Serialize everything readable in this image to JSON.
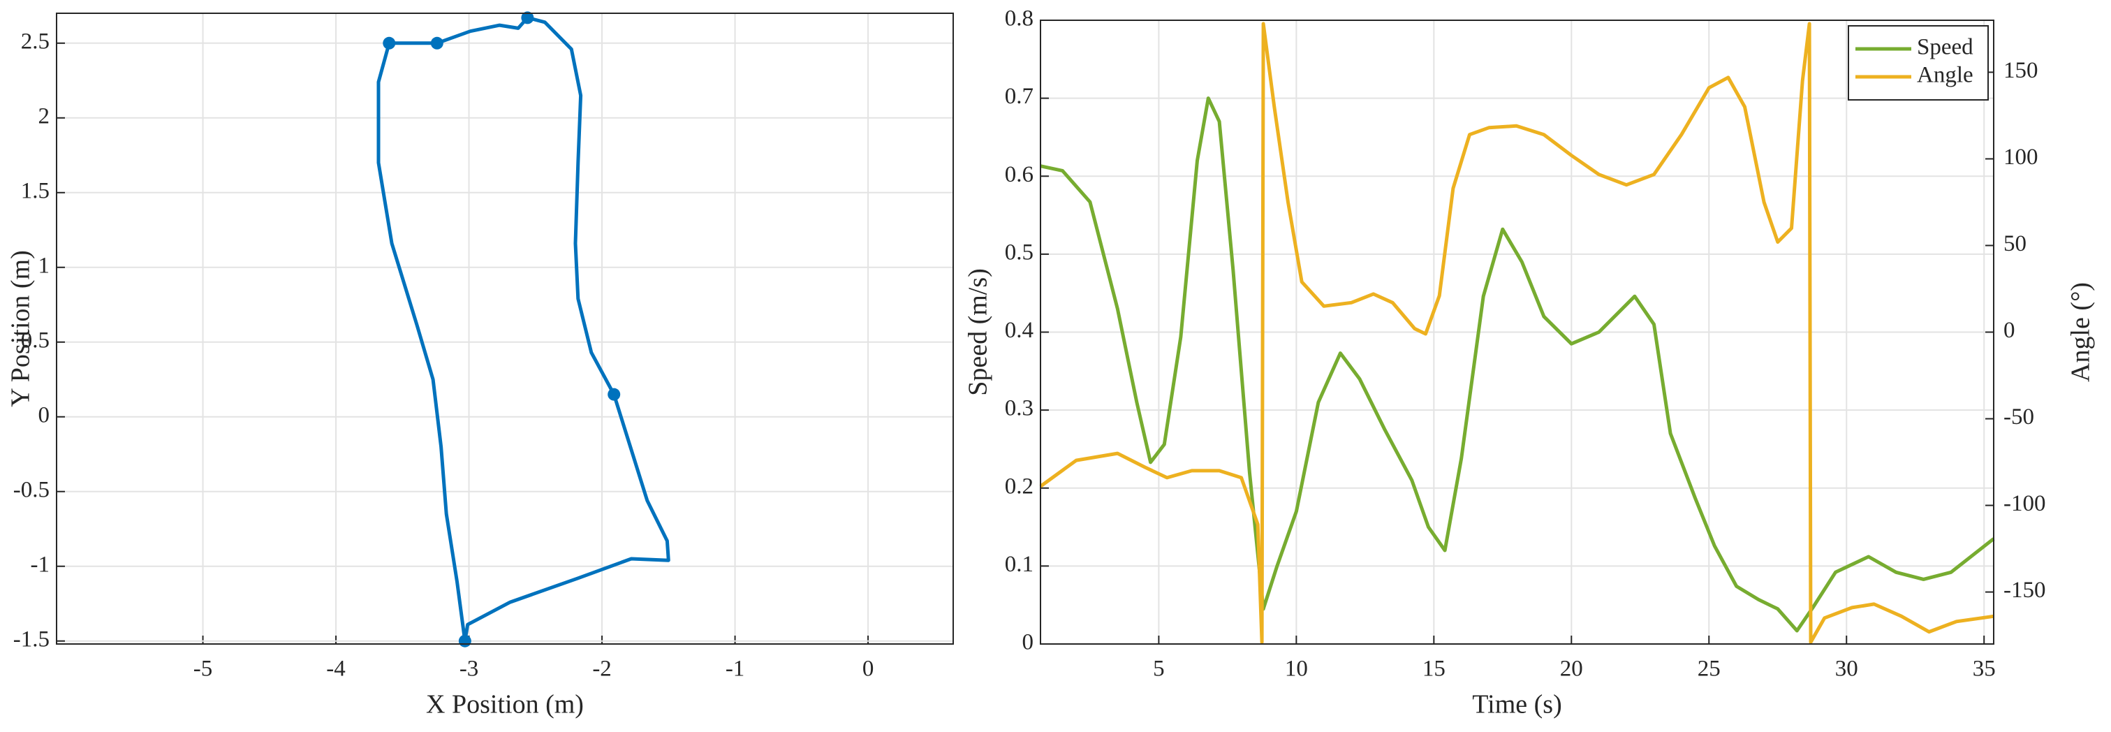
{
  "chart_data": [
    {
      "type": "line",
      "xlabel": "X Position (m)",
      "ylabel": "Y Position (m)",
      "xlim": [
        -6.1,
        0.64
      ],
      "ylim": [
        -1.52,
        2.7
      ],
      "xticks": [
        -5,
        -4,
        -3,
        -2,
        -1,
        0
      ],
      "yticks": [
        -1.5,
        -1,
        -0.5,
        0,
        0.5,
        1,
        1.5,
        2,
        2.5
      ],
      "grid": true,
      "series": [
        {
          "color": "#0072bd",
          "mode": "line",
          "x": [
            -3.03,
            -3.01,
            -2.69,
            -2.18,
            -1.78,
            -1.5,
            -1.51,
            -1.66,
            -1.91,
            -2.08,
            -2.18,
            -2.2,
            -2.18,
            -2.16,
            -2.23,
            -2.43,
            -2.56,
            -2.63,
            -2.77,
            -2.99,
            -3.24,
            -3.6,
            -3.68,
            -3.68,
            -3.58,
            -3.39,
            -3.27,
            -3.21,
            -3.17,
            -3.09,
            -3.03
          ],
          "values": [
            -1.5,
            -1.39,
            -1.24,
            -1.08,
            -0.95,
            -0.96,
            -0.83,
            -0.56,
            0.15,
            0.43,
            0.79,
            1.16,
            1.7,
            2.15,
            2.46,
            2.64,
            2.67,
            2.6,
            2.62,
            2.58,
            2.5,
            2.5,
            2.24,
            1.7,
            1.16,
            0.61,
            0.25,
            -0.2,
            -0.65,
            -1.1,
            -1.5
          ]
        },
        {
          "color": "#0072bd",
          "mode": "markers",
          "x": [
            -3.03,
            -1.91,
            -2.56,
            -3.24,
            -3.6
          ],
          "values": [
            -1.5,
            0.15,
            2.67,
            2.5,
            2.5
          ]
        }
      ]
    },
    {
      "type": "line",
      "xlabel": "Time (s)",
      "ylabel": "Speed (m/s)",
      "y2label": "Angle (°)",
      "xlim": [
        0.7,
        35.35
      ],
      "ylim": [
        0,
        0.8
      ],
      "y2lim": [
        -180,
        180
      ],
      "xticks": [
        5,
        10,
        15,
        20,
        25,
        30,
        35
      ],
      "yticks": [
        0,
        0.1,
        0.2,
        0.3,
        0.4,
        0.5,
        0.6,
        0.7,
        0.8
      ],
      "y2ticks": [
        -150,
        -100,
        -50,
        0,
        50,
        100,
        150
      ],
      "grid": true,
      "legend": "upper right",
      "series": [
        {
          "name": "Speed",
          "color": "#77ac30",
          "mode": "line",
          "x": [
            0.7,
            1.5,
            2.5,
            3.5,
            4.2,
            4.7,
            5.2,
            5.8,
            6.4,
            6.8,
            7.2,
            7.7,
            8.3,
            8.8,
            9.3,
            10,
            10.8,
            11.6,
            12.3,
            13.2,
            14.2,
            14.8,
            15.4,
            16,
            16.8,
            17.5,
            18.2,
            19,
            20,
            21,
            22.3,
            23,
            23.6,
            24.5,
            25.2,
            26,
            26.8,
            27.5,
            28.2,
            28.8,
            29.6,
            30.8,
            31.8,
            32.8,
            33.8,
            35.35
          ],
          "values": [
            0.613,
            0.607,
            0.567,
            0.43,
            0.31,
            0.233,
            0.256,
            0.394,
            0.62,
            0.7,
            0.67,
            0.48,
            0.22,
            0.045,
            0.1,
            0.17,
            0.31,
            0.373,
            0.34,
            0.276,
            0.21,
            0.15,
            0.12,
            0.238,
            0.446,
            0.532,
            0.49,
            0.42,
            0.385,
            0.4,
            0.446,
            0.41,
            0.27,
            0.187,
            0.126,
            0.074,
            0.057,
            0.045,
            0.017,
            0.048,
            0.092,
            0.112,
            0.092,
            0.083,
            0.092,
            0.135
          ]
        },
        {
          "name": "Angle",
          "color": "#edb120",
          "mode": "line",
          "axis": "y2",
          "x": [
            0.7,
            2,
            3.5,
            4.5,
            5.3,
            6.2,
            7.2,
            8,
            8.6,
            8.75,
            8.8,
            9.2,
            9.7,
            10.2,
            11,
            12,
            12.8,
            13.5,
            14.3,
            14.7,
            15.2,
            15.7,
            16.3,
            17,
            18,
            19,
            20,
            21,
            22,
            23,
            24,
            25,
            25.7,
            26.3,
            27,
            27.5,
            28,
            28.4,
            28.65,
            28.7,
            29.2,
            30.2,
            31,
            32,
            33,
            34,
            35.35
          ],
          "values": [
            -89,
            -74,
            -70,
            -78,
            -84,
            -80,
            -80,
            -84,
            -111,
            -179,
            178,
            130,
            75,
            29,
            15,
            17,
            22,
            17,
            2,
            -1,
            21,
            83,
            114,
            118,
            119,
            114,
            102,
            91,
            85,
            91,
            114,
            141,
            147,
            130,
            75,
            52,
            60,
            145,
            178,
            -179,
            -165,
            -159,
            -157,
            -164,
            -173,
            -167,
            -164
          ]
        }
      ]
    }
  ]
}
